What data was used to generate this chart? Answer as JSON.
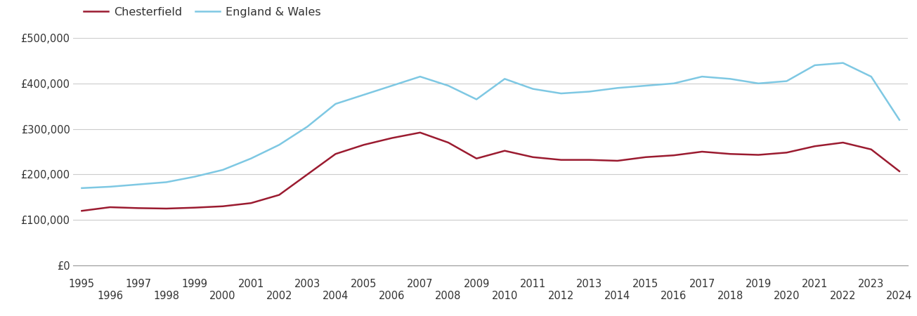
{
  "chesterfield": {
    "label": "Chesterfield",
    "color": "#9b1b30",
    "years": [
      1995,
      1996,
      1997,
      1998,
      1999,
      2000,
      2001,
      2002,
      2003,
      2004,
      2005,
      2006,
      2007,
      2008,
      2009,
      2010,
      2011,
      2012,
      2013,
      2014,
      2015,
      2016,
      2017,
      2018,
      2019,
      2020,
      2021,
      2022,
      2023,
      2024
    ],
    "values": [
      120000,
      128000,
      126000,
      125000,
      127000,
      130000,
      137000,
      155000,
      200000,
      245000,
      265000,
      280000,
      292000,
      270000,
      235000,
      252000,
      238000,
      232000,
      232000,
      230000,
      238000,
      242000,
      250000,
      245000,
      243000,
      248000,
      262000,
      270000,
      255000,
      207000
    ]
  },
  "england_wales": {
    "label": "England & Wales",
    "color": "#7ec8e3",
    "years": [
      1995,
      1996,
      1997,
      1998,
      1999,
      2000,
      2001,
      2002,
      2003,
      2004,
      2005,
      2006,
      2007,
      2008,
      2009,
      2010,
      2011,
      2012,
      2013,
      2014,
      2015,
      2016,
      2017,
      2018,
      2019,
      2020,
      2021,
      2022,
      2023,
      2024
    ],
    "values": [
      170000,
      173000,
      178000,
      183000,
      195000,
      210000,
      235000,
      265000,
      305000,
      355000,
      375000,
      395000,
      415000,
      395000,
      365000,
      410000,
      388000,
      378000,
      382000,
      390000,
      395000,
      400000,
      415000,
      410000,
      400000,
      405000,
      440000,
      445000,
      415000,
      320000
    ]
  },
  "ylim": [
    0,
    500000
  ],
  "yticks": [
    0,
    100000,
    200000,
    300000,
    400000,
    500000
  ],
  "ytick_labels": [
    "£0",
    "£100,000",
    "£200,000",
    "£300,000",
    "£400,000",
    "£500,000"
  ],
  "background_color": "#ffffff",
  "grid_color": "#cccccc",
  "line_width": 1.8,
  "legend_fontsize": 11.5,
  "tick_fontsize": 10.5
}
